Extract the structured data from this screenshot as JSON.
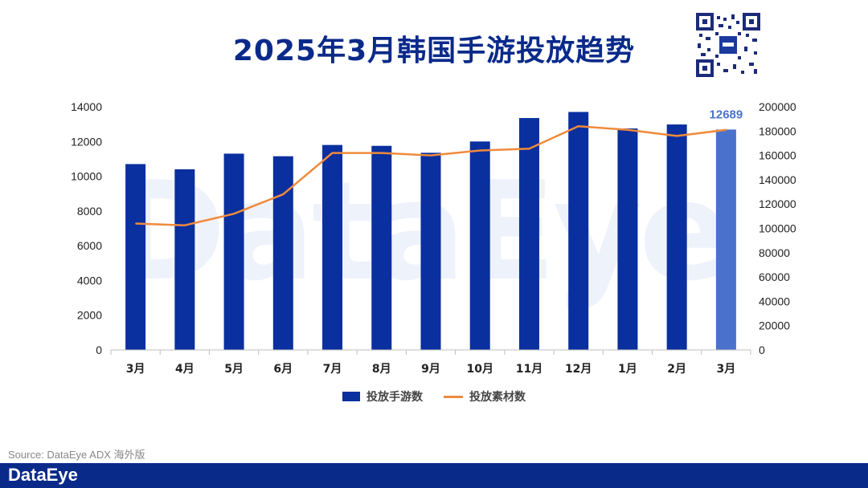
{
  "title": "2025年3月韩国手游投放趋势",
  "watermark": "DataEye",
  "source": "Source: DataEye ADX 海外版",
  "brand": "DataEye",
  "colors": {
    "bar": "#0a2f9e",
    "bar_highlight": "#4a72cc",
    "line": "#f08a3c",
    "title": "#0a2a8a"
  },
  "chart_data": {
    "type": "bar+line",
    "categories": [
      "3月",
      "4月",
      "5月",
      "6月",
      "7月",
      "8月",
      "9月",
      "10月",
      "11月",
      "12月",
      "1月",
      "2月",
      "3月"
    ],
    "series": [
      {
        "name": "投放手游数",
        "type": "bar",
        "axis": "left",
        "values": [
          10700,
          10400,
          11300,
          11150,
          11800,
          11750,
          11350,
          12000,
          13350,
          13700,
          12750,
          12980,
          12689
        ]
      },
      {
        "name": "投放素材数",
        "type": "line",
        "axis": "right",
        "values": [
          104000,
          102500,
          112000,
          128000,
          162000,
          162000,
          160000,
          164000,
          165500,
          184000,
          181000,
          176000,
          181000
        ]
      }
    ],
    "y_left": {
      "min": 0,
      "max": 14000,
      "ticks": [
        0,
        2000,
        4000,
        6000,
        8000,
        10000,
        12000,
        14000
      ]
    },
    "y_right": {
      "min": 0,
      "max": 200000,
      "ticks": [
        0,
        20000,
        40000,
        60000,
        80000,
        100000,
        120000,
        140000,
        160000,
        180000,
        200000
      ]
    },
    "annotation": {
      "index": 12,
      "label": "12689"
    },
    "legend_position": "bottom"
  }
}
